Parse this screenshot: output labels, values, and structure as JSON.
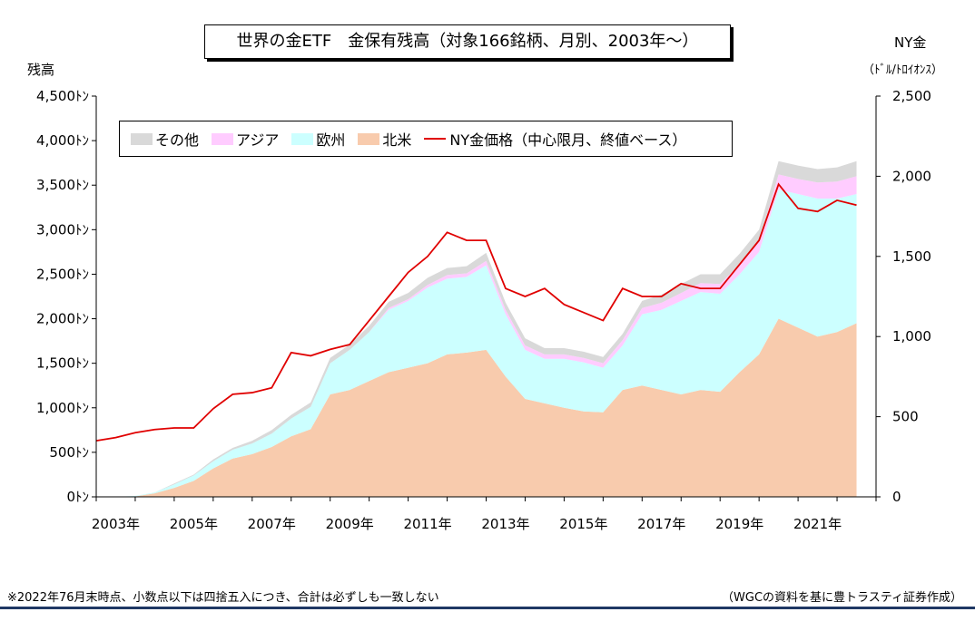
{
  "title": "世界の金ETF　金保有残高（対象166銘柄、月別、2003年～）",
  "left_axis_label": "残高",
  "right_axis_label": "NY金",
  "right_axis_unit": "（ﾄﾞﾙ/ﾄﾛｲｵﾝｽ）",
  "footnote": "※2022年76月末時点、小数点以下は四捨五入につき、合計は必ずしも一致しない",
  "source": "（WGCの資料を基に豊トラスティ証券作成）",
  "colors": {
    "other": "#d9d9d9",
    "asia": "#ffccff",
    "europe": "#ccffff",
    "north_america": "#f8cbad",
    "gold": "#e00000"
  },
  "chart_data": {
    "type": "area",
    "x_ticks": [
      "2003年",
      "2005年",
      "2007年",
      "2009年",
      "2011年",
      "2013年",
      "2015年",
      "2017年",
      "2019年",
      "2021年"
    ],
    "y_left": {
      "min": 0,
      "max": 4500,
      "step": 500,
      "tick_labels": [
        "0ﾄﾝ",
        "500ﾄﾝ",
        "1,000ﾄﾝ",
        "1,500ﾄﾝ",
        "2,000ﾄﾝ",
        "2,500ﾄﾝ",
        "3,000ﾄﾝ",
        "3,500ﾄﾝ",
        "4,000ﾄﾝ",
        "4,500ﾄﾝ"
      ]
    },
    "y_right": {
      "min": 0,
      "max": 2500,
      "step": 500,
      "tick_labels": [
        "0",
        "500",
        "1,000",
        "1,500",
        "2,000",
        "2,500"
      ]
    },
    "legend": [
      "その他",
      "アジア",
      "欧州",
      "北米",
      "NY金価格（中心限月、終値ベース）"
    ],
    "time": [
      2003.0,
      2003.5,
      2004.0,
      2004.5,
      2005.0,
      2005.5,
      2006.0,
      2006.5,
      2007.0,
      2007.5,
      2008.0,
      2008.5,
      2009.0,
      2009.5,
      2010.0,
      2010.5,
      2011.0,
      2011.5,
      2012.0,
      2012.5,
      2013.0,
      2013.5,
      2014.0,
      2014.5,
      2015.0,
      2015.5,
      2016.0,
      2016.5,
      2017.0,
      2017.5,
      2018.0,
      2018.5,
      2019.0,
      2019.5,
      2020.0,
      2020.5,
      2021.0,
      2021.5,
      2022.0,
      2022.5
    ],
    "series": [
      {
        "name": "北米",
        "values": [
          0,
          0,
          5,
          40,
          100,
          180,
          320,
          430,
          480,
          560,
          680,
          760,
          1150,
          1200,
          1300,
          1400,
          1450,
          1500,
          1600,
          1620,
          1650,
          1350,
          1100,
          1050,
          1000,
          960,
          950,
          1200,
          1250,
          1200,
          1150,
          1200,
          1180,
          1400,
          1600,
          2000,
          1900,
          1800,
          1850,
          1950
        ]
      },
      {
        "name": "欧州",
        "values": [
          0,
          0,
          5,
          10,
          40,
          60,
          80,
          100,
          120,
          150,
          200,
          250,
          350,
          450,
          550,
          700,
          750,
          850,
          850,
          850,
          950,
          700,
          550,
          500,
          550,
          550,
          500,
          500,
          800,
          900,
          1050,
          1100,
          1100,
          1100,
          1150,
          1450,
          1500,
          1550,
          1500,
          1450
        ]
      },
      {
        "name": "アジア",
        "values": [
          0,
          0,
          0,
          0,
          0,
          0,
          0,
          0,
          0,
          0,
          0,
          0,
          0,
          0,
          0,
          20,
          20,
          30,
          40,
          40,
          50,
          50,
          50,
          50,
          50,
          50,
          50,
          60,
          70,
          80,
          90,
          100,
          110,
          110,
          120,
          170,
          170,
          180,
          190,
          200
        ]
      },
      {
        "name": "その他",
        "values": [
          0,
          0,
          0,
          0,
          10,
          10,
          20,
          20,
          30,
          40,
          40,
          50,
          60,
          60,
          70,
          70,
          70,
          80,
          80,
          80,
          90,
          80,
          80,
          70,
          70,
          70,
          70,
          70,
          80,
          90,
          100,
          100,
          110,
          120,
          130,
          150,
          150,
          150,
          160,
          170
        ]
      },
      {
        "name": "NY金価格（中心限月、終値ベース）",
        "axis": "right",
        "values": [
          350,
          370,
          400,
          420,
          430,
          430,
          550,
          640,
          650,
          680,
          900,
          880,
          920,
          950,
          1100,
          1250,
          1400,
          1500,
          1650,
          1600,
          1600,
          1300,
          1250,
          1300,
          1200,
          1150,
          1100,
          1300,
          1250,
          1250,
          1330,
          1300,
          1300,
          1450,
          1600,
          1950,
          1800,
          1780,
          1850,
          1820
        ]
      }
    ]
  }
}
